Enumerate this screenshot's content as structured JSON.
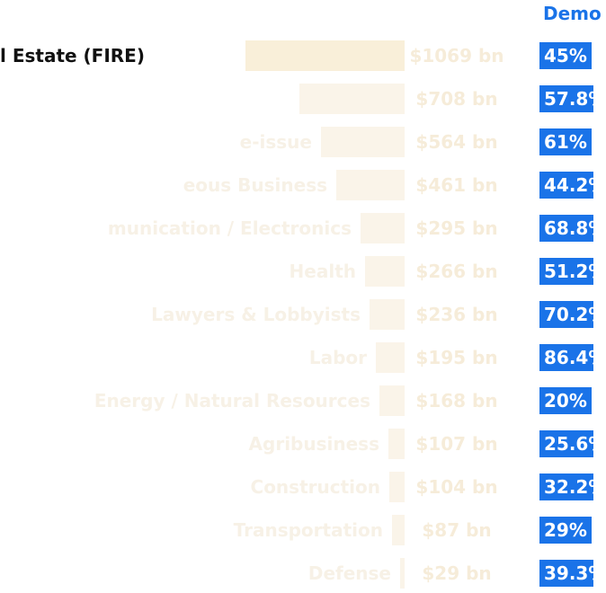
{
  "dem_header": "Demo",
  "colors": {
    "highlight_text": "#111111",
    "faded_text": "#f7f1e6",
    "bar": "#faf4e9",
    "highlight_bar": "#f9efd9",
    "amount_text": "#f6ecd9",
    "dem_badge": "#1a73e8"
  },
  "chart_data": {
    "type": "bar",
    "orientation": "horizontal",
    "categories": [
      "l Estate (FIRE)",
      "",
      "e-issue",
      "eous Business",
      "munication / Electronics",
      "Health",
      "Lawyers & Lobbyists",
      "Labor",
      "Energy / Natural Resources",
      "Agribusiness",
      "Construction",
      "Transportation",
      "Defense"
    ],
    "highlight_index": 0,
    "values": [
      1069,
      708,
      564,
      461,
      295,
      266,
      236,
      195,
      168,
      107,
      104,
      87,
      29
    ],
    "value_labels": [
      "$1069 bn",
      "$708 bn",
      "$564 bn",
      "$461 bn",
      "$295 bn",
      "$266 bn",
      "$236 bn",
      "$195 bn",
      "$168 bn",
      "$107 bn",
      "$104 bn",
      "$87 bn",
      "$29 bn"
    ],
    "dem_share_labels": [
      "45%",
      "57.8%",
      "61%",
      "44.2%",
      "68.8%",
      "51.2%",
      "70.2%",
      "86.4%",
      "20%",
      "25.6%",
      "32.2%",
      "29%",
      "39.3%"
    ]
  }
}
